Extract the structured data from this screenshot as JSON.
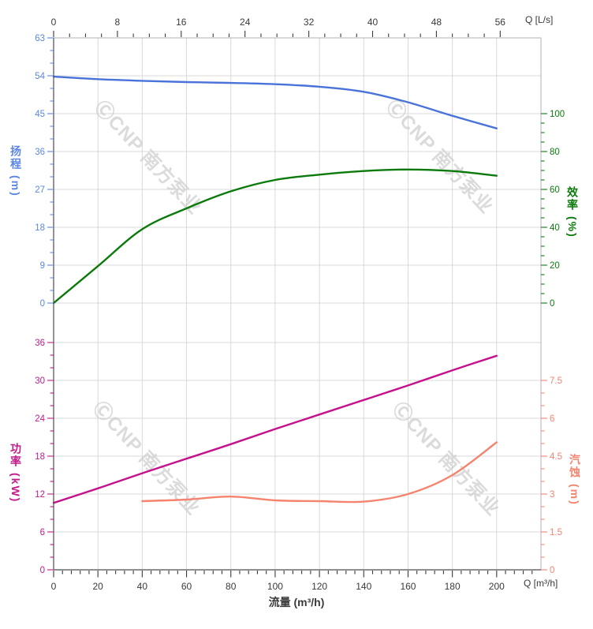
{
  "watermark": {
    "text": "ⒸCNP 南方泵业",
    "color": "#cfcfcf",
    "opacity": 0.75
  },
  "colors": {
    "head": "#4a73da",
    "head_text": "#5b86e6",
    "efficiency": "#0b7a0b",
    "efficiency_text": "#0b7a0b",
    "power": "#c5118c",
    "power_text": "#c31b8a",
    "npsh": "#f5846f",
    "npsh_text": "#f5846f",
    "grid": "#d9d9d9",
    "frame_light": "#b0b0b0",
    "frame_dark": "#4d4d4d",
    "flow_text": "#3a3a3a"
  },
  "axes": {
    "top_flow": {
      "title": "Q [L/s]",
      "majors": [
        0,
        8,
        16,
        24,
        32,
        40,
        48,
        56
      ],
      "minor_step": 2
    },
    "bottom_flow": {
      "title": "Q [m³/h]",
      "axis_label": "流量 (m³/h)",
      "majors": [
        0,
        20,
        40,
        60,
        80,
        100,
        120,
        140,
        160,
        180,
        200
      ],
      "minor_step": 4,
      "minor_max": 216
    },
    "head": {
      "label": "扬程",
      "unit": "(m)",
      "majors": [
        0,
        9,
        18,
        27,
        36,
        45,
        54,
        63
      ],
      "minor_step": 3
    },
    "efficiency": {
      "label": "效率",
      "unit": "(%)",
      "majors": [
        0,
        20,
        40,
        60,
        80,
        100
      ],
      "minor_step": 5
    },
    "power": {
      "label": "功率",
      "unit": "(kW)",
      "majors": [
        0,
        6,
        12,
        18,
        24,
        30,
        36
      ],
      "minor_step": 2
    },
    "npsh": {
      "label": "汽蚀",
      "unit": "(m)",
      "majors": [
        0,
        1.5,
        3,
        4.5,
        6,
        7.5
      ],
      "minor_step": 0.5
    }
  },
  "chart_data": [
    {
      "type": "line",
      "name": "head",
      "y_axis": "head",
      "x_unit": "m³/h",
      "y_unit": "m",
      "x": [
        0,
        20,
        40,
        60,
        80,
        100,
        120,
        140,
        160,
        180,
        200
      ],
      "y": [
        53.8,
        53.2,
        52.8,
        52.5,
        52.3,
        52.0,
        51.4,
        50.2,
        47.7,
        44.5,
        41.5
      ],
      "x_range": [
        0,
        220
      ],
      "y_range": [
        0,
        63
      ]
    },
    {
      "type": "line",
      "name": "efficiency",
      "y_axis": "efficiency",
      "x_unit": "m³/h",
      "y_unit": "%",
      "x": [
        0,
        20,
        40,
        60,
        80,
        100,
        120,
        140,
        160,
        180,
        200
      ],
      "y": [
        0,
        19.5,
        39,
        50,
        59,
        65,
        67.8,
        69.7,
        70.5,
        69.7,
        67.2
      ],
      "x_range": [
        0,
        220
      ],
      "y_range": [
        0,
        100
      ]
    },
    {
      "type": "line",
      "name": "power",
      "y_axis": "power",
      "x_unit": "m³/h",
      "y_unit": "kW",
      "x": [
        0,
        20,
        40,
        60,
        80,
        100,
        120,
        140,
        160,
        180,
        200
      ],
      "y": [
        10.6,
        12.9,
        15.3,
        17.6,
        19.9,
        22.3,
        24.6,
        26.9,
        29.2,
        31.6,
        33.9
      ],
      "x_range": [
        0,
        220
      ],
      "y_range": [
        0,
        36
      ]
    },
    {
      "type": "line",
      "name": "npsh",
      "y_axis": "npsh",
      "x_unit": "m³/h",
      "y_unit": "m",
      "x": [
        40,
        60,
        80,
        100,
        120,
        140,
        160,
        180,
        200
      ],
      "y": [
        2.72,
        2.78,
        2.9,
        2.75,
        2.72,
        2.7,
        3.0,
        3.75,
        5.05
      ],
      "x_range": [
        0,
        220
      ],
      "y_range": [
        0,
        9
      ]
    }
  ]
}
